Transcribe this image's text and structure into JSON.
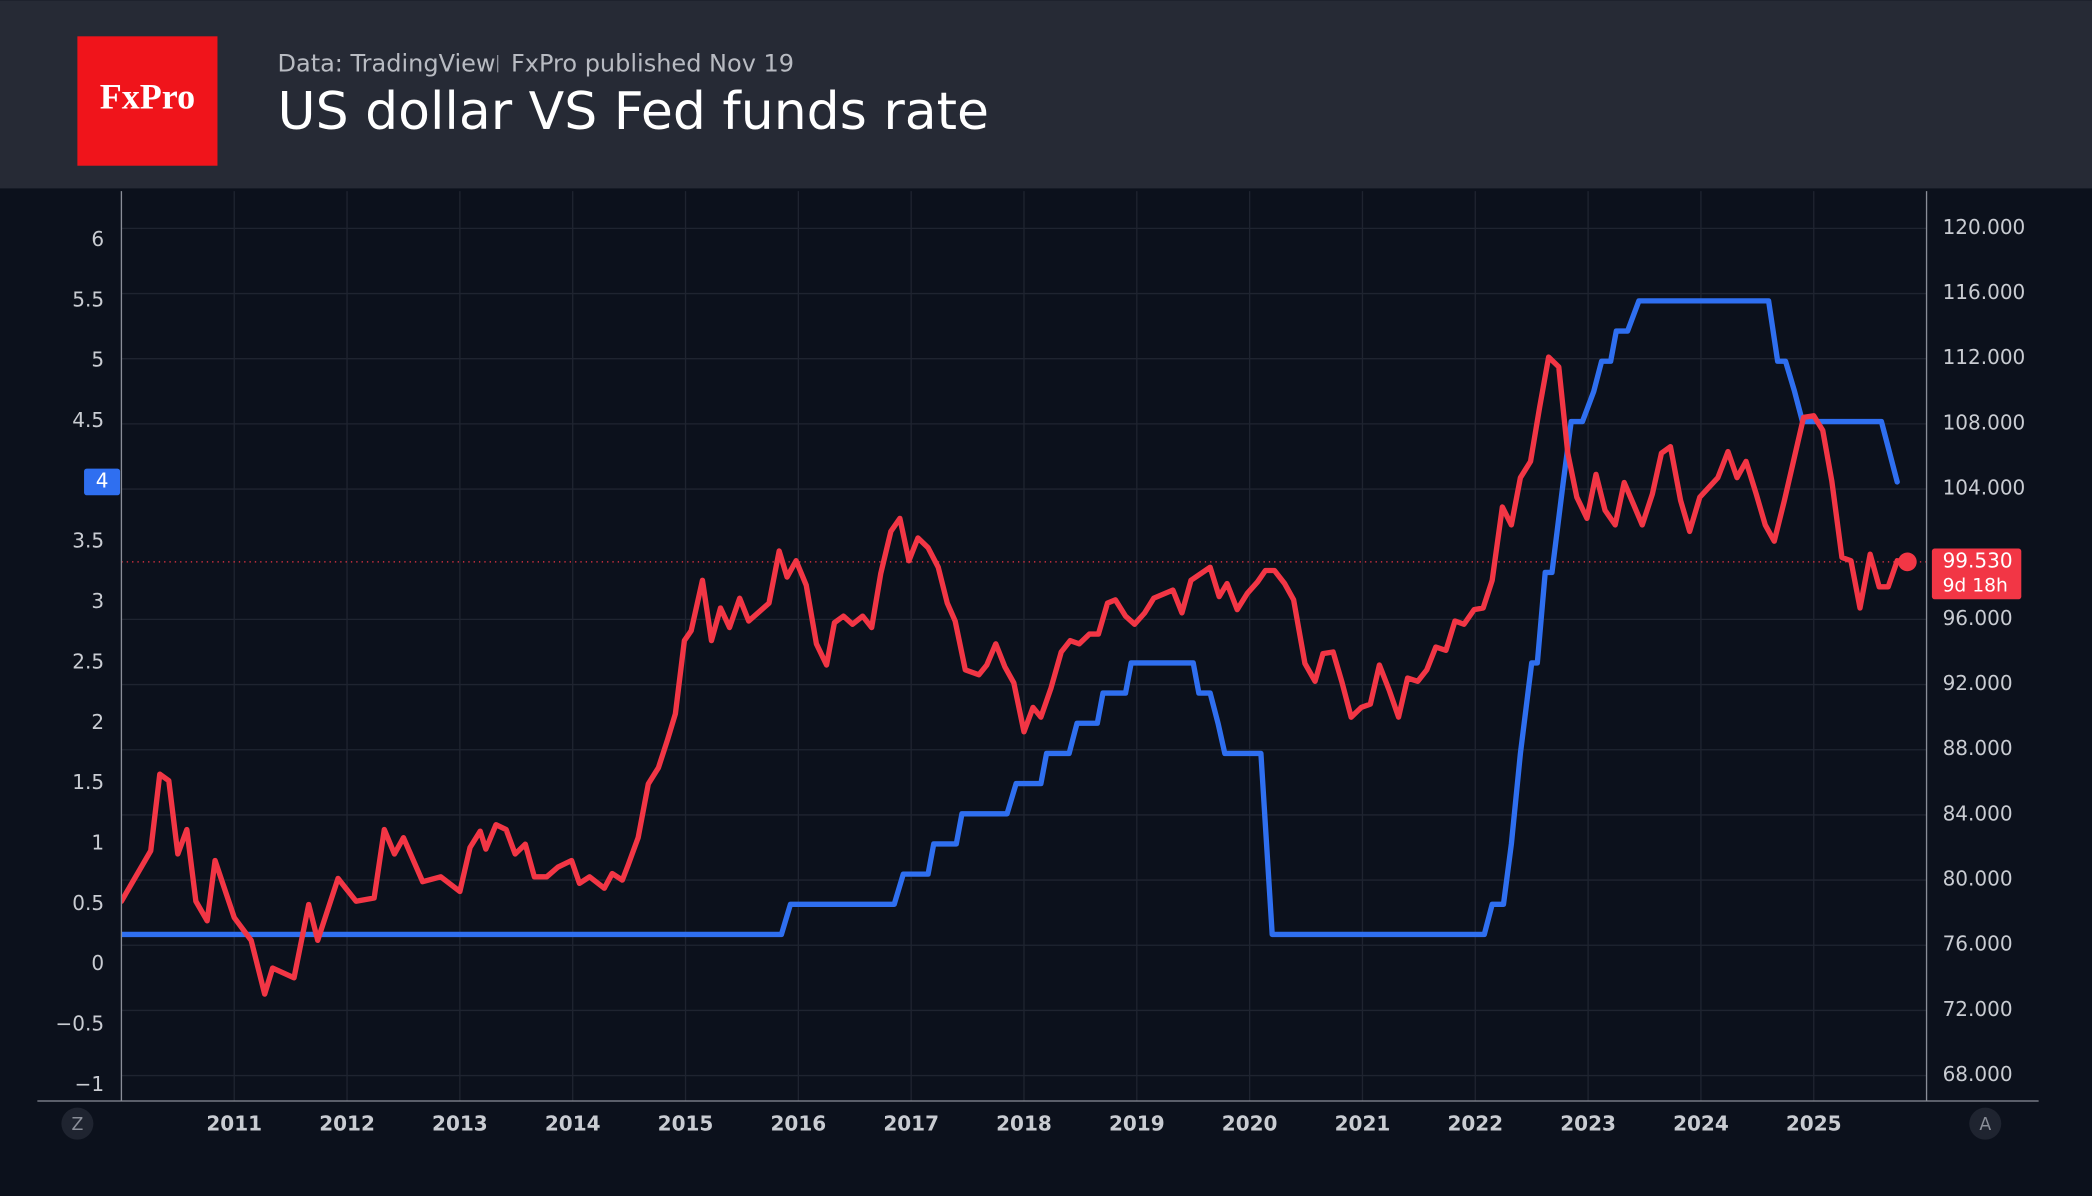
{
  "chart_data": {
    "type": "line",
    "logo": "FxPro",
    "source": "Data: TradingView",
    "published": "FxPro published Nov 19",
    "title": "US dollar VS Fed funds rate",
    "xlim": [
      2010,
      2026
    ],
    "xticks": [
      2011,
      2012,
      2013,
      2014,
      2015,
      2016,
      2017,
      2018,
      2019,
      2020,
      2021,
      2022,
      2023,
      2024,
      2025
    ],
    "ylim": [
      -1.13,
      6.41
    ],
    "yticks": [
      {
        "value": -1,
        "label": "−1"
      },
      {
        "value": -0.5,
        "label": "−0.5"
      },
      0,
      0.5,
      1,
      1.5,
      2,
      2.5,
      3,
      3.5,
      4,
      4.5,
      5,
      5.5,
      6
    ],
    "y2lim": [
      66.44,
      122.29
    ],
    "y2ticks": [
      {
        "value": 68,
        "label": "68.000"
      },
      {
        "value": 72,
        "label": "72.000"
      },
      {
        "value": 76,
        "label": "76.000"
      },
      {
        "value": 80,
        "label": "80.000"
      },
      {
        "value": 84,
        "label": "84.000"
      },
      {
        "value": 88,
        "label": "88.000"
      },
      {
        "value": 92,
        "label": "92.000"
      },
      {
        "value": 96,
        "label": "96.000"
      },
      {
        "value": 104,
        "label": "104.000"
      },
      {
        "value": 108,
        "label": "108.000"
      },
      {
        "value": 112,
        "label": "112.000"
      },
      {
        "value": 116,
        "label": "116.000"
      },
      {
        "value": 120,
        "label": "120.000"
      }
    ],
    "grid": true,
    "series": [
      {
        "color": "#2f6ff0",
        "axis": "y",
        "x": [
          2010.0,
          2015.85,
          2015.93,
          2016.85,
          2016.93,
          2017.15,
          2017.2,
          2017.4,
          2017.45,
          2017.85,
          2017.93,
          2018.15,
          2018.2,
          2018.4,
          2018.47,
          2018.65,
          2018.7,
          2018.9,
          2018.95,
          2019.5,
          2019.55,
          2019.65,
          2019.72,
          2019.78,
          2020.1,
          2020.15,
          2020.2,
          2022.08,
          2022.15,
          2022.25,
          2022.32,
          2022.4,
          2022.5,
          2022.55,
          2022.62,
          2022.68,
          2022.78,
          2022.85,
          2022.95,
          2023.05,
          2023.12,
          2023.2,
          2023.25,
          2023.35,
          2023.45,
          2024.6,
          2024.68,
          2024.75,
          2024.83,
          2024.9,
          2025.6,
          2025.67,
          2025.74
        ],
        "values": [
          0.25,
          0.25,
          0.5,
          0.5,
          0.75,
          0.75,
          1.0,
          1.0,
          1.25,
          1.25,
          1.5,
          1.5,
          1.75,
          1.75,
          2.0,
          2.0,
          2.25,
          2.25,
          2.5,
          2.5,
          2.25,
          2.25,
          2.0,
          1.75,
          1.75,
          1.0,
          0.25,
          0.25,
          0.5,
          0.5,
          1.0,
          1.75,
          2.5,
          2.5,
          3.25,
          3.25,
          4.0,
          4.5,
          4.5,
          4.75,
          5.0,
          5.0,
          5.25,
          5.25,
          5.5,
          5.5,
          5.0,
          5.0,
          4.75,
          4.5,
          4.5,
          4.25,
          4.0
        ]
      },
      {
        "color": "#f23645",
        "axis": "y2",
        "x": [
          2010.0,
          2010.26,
          2010.34,
          2010.42,
          2010.5,
          2010.58,
          2010.66,
          2010.76,
          2010.83,
          2011.0,
          2011.15,
          2011.27,
          2011.34,
          2011.53,
          2011.66,
          2011.74,
          2011.92,
          2012.08,
          2012.24,
          2012.33,
          2012.42,
          2012.5,
          2012.67,
          2012.83,
          2013.0,
          2013.09,
          2013.18,
          2013.23,
          2013.32,
          2013.41,
          2013.49,
          2013.58,
          2013.66,
          2013.77,
          2013.87,
          2013.99,
          2014.06,
          2014.15,
          2014.28,
          2014.35,
          2014.44,
          2014.49,
          2014.58,
          2014.67,
          2014.76,
          2014.84,
          2014.91,
          2014.99,
          2015.05,
          2015.15,
          2015.23,
          2015.31,
          2015.39,
          2015.48,
          2015.56,
          2015.74,
          2015.83,
          2015.9,
          2015.98,
          2016.07,
          2016.16,
          2016.25,
          2016.32,
          2016.4,
          2016.48,
          2016.57,
          2016.65,
          2016.73,
          2016.82,
          2016.9,
          2016.98,
          2017.06,
          2017.15,
          2017.24,
          2017.32,
          2017.39,
          2017.48,
          2017.6,
          2017.67,
          2017.75,
          2017.83,
          2017.91,
          2018.0,
          2018.08,
          2018.15,
          2018.24,
          2018.33,
          2018.41,
          2018.49,
          2018.58,
          2018.66,
          2018.74,
          2018.81,
          2018.9,
          2018.98,
          2019.07,
          2019.15,
          2019.32,
          2019.4,
          2019.48,
          2019.65,
          2019.73,
          2019.8,
          2019.89,
          2019.98,
          2020.07,
          2020.14,
          2020.22,
          2020.31,
          2020.39,
          2020.49,
          2020.58,
          2020.65,
          2020.74,
          2020.82,
          2020.9,
          2020.99,
          2021.07,
          2021.15,
          2021.24,
          2021.32,
          2021.4,
          2021.49,
          2021.57,
          2021.65,
          2021.74,
          2021.82,
          2021.9,
          2021.99,
          2022.07,
          2022.15,
          2022.24,
          2022.32,
          2022.4,
          2022.49,
          2022.57,
          2022.65,
          2022.74,
          2022.82,
          2022.9,
          2022.99,
          2023.07,
          2023.15,
          2023.24,
          2023.32,
          2023.4,
          2023.48,
          2023.57,
          2023.65,
          2023.73,
          2023.82,
          2023.9,
          2023.99,
          2024.07,
          2024.15,
          2024.24,
          2024.32,
          2024.4,
          2024.49,
          2024.57,
          2024.65,
          2024.74,
          2024.82,
          2024.91,
          2025.0,
          2025.08,
          2025.16,
          2025.25,
          2025.33,
          2025.41,
          2025.5,
          2025.58,
          2025.66,
          2025.74,
          2025.83
        ],
        "values": [
          78.7,
          81.8,
          86.5,
          86.1,
          81.6,
          83.1,
          78.7,
          77.5,
          81.2,
          77.7,
          76.3,
          73.0,
          74.6,
          74.0,
          78.5,
          76.3,
          80.1,
          78.7,
          78.9,
          83.1,
          81.6,
          82.6,
          79.9,
          80.2,
          79.3,
          82.0,
          83.0,
          81.9,
          83.4,
          83.1,
          81.6,
          82.2,
          80.2,
          80.2,
          80.8,
          81.2,
          79.8,
          80.2,
          79.5,
          80.4,
          80.0,
          80.9,
          82.6,
          85.9,
          86.9,
          88.6,
          90.2,
          94.7,
          95.3,
          98.4,
          94.7,
          96.7,
          95.5,
          97.3,
          95.9,
          97.0,
          100.2,
          98.6,
          99.6,
          98.1,
          94.5,
          93.2,
          95.8,
          96.2,
          95.7,
          96.2,
          95.5,
          98.8,
          101.4,
          102.2,
          99.6,
          101.0,
          100.4,
          99.2,
          97.0,
          95.9,
          92.9,
          92.6,
          93.2,
          94.5,
          93.1,
          92.1,
          89.1,
          90.6,
          90.0,
          91.8,
          94.0,
          94.7,
          94.5,
          95.1,
          95.1,
          97.0,
          97.2,
          96.2,
          95.7,
          96.4,
          97.3,
          97.8,
          96.4,
          98.4,
          99.2,
          97.4,
          98.2,
          96.6,
          97.6,
          98.3,
          99.0,
          99.0,
          98.2,
          97.2,
          93.3,
          92.2,
          93.9,
          94.0,
          92.1,
          90.0,
          90.6,
          90.8,
          93.2,
          91.6,
          90.0,
          92.4,
          92.2,
          92.9,
          94.3,
          94.1,
          95.9,
          95.7,
          96.6,
          96.7,
          98.4,
          102.9,
          101.8,
          104.7,
          105.7,
          109.0,
          112.1,
          111.5,
          106.2,
          103.5,
          102.2,
          104.9,
          102.7,
          101.8,
          104.4,
          103.1,
          101.8,
          103.7,
          106.2,
          106.6,
          103.3,
          101.4,
          103.5,
          104.1,
          104.7,
          106.3,
          104.7,
          105.7,
          103.7,
          101.8,
          100.8,
          103.3,
          105.7,
          108.4,
          108.5,
          107.6,
          104.5,
          99.8,
          99.6,
          96.7,
          100.0,
          98.0,
          98.0,
          99.6,
          99.53
        ]
      }
    ],
    "last_y": 4,
    "last_y2": {
      "value": 99.53,
      "label": "99.530"
    },
    "countdown": "9d 18h",
    "buttons": [
      "Z",
      "A"
    ]
  }
}
